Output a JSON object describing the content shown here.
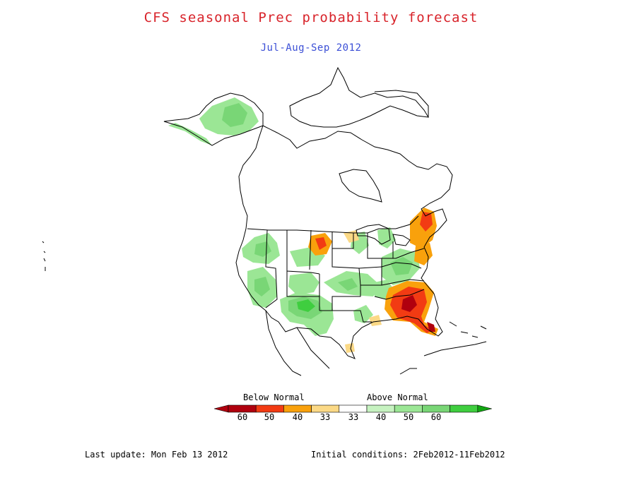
{
  "title": "CFS seasonal Prec probability forecast",
  "subtitle": "Jul-Aug-Sep 2012",
  "colors": {
    "title": "#d8232a",
    "subtitle": "#3b4fd6",
    "outline": "#000000"
  },
  "legend": {
    "below_label": "Below Normal",
    "above_label": "Above Normal",
    "ticks": [
      "60",
      "50",
      "40",
      "33",
      "33",
      "40",
      "50",
      "60"
    ],
    "below_colors": [
      "#b0000e",
      "#f23b13",
      "#f9a10c",
      "#fbd986"
    ],
    "neutral_color": "#ffffff",
    "above_colors": [
      "#c6f2c0",
      "#9be695",
      "#79d676",
      "#3fce3f",
      "#11a611"
    ]
  },
  "footer": {
    "last_update": "Last update: Mon Feb 13 2012",
    "initial_conditions": "Initial conditions: 2Feb2012-11Feb2012"
  }
}
